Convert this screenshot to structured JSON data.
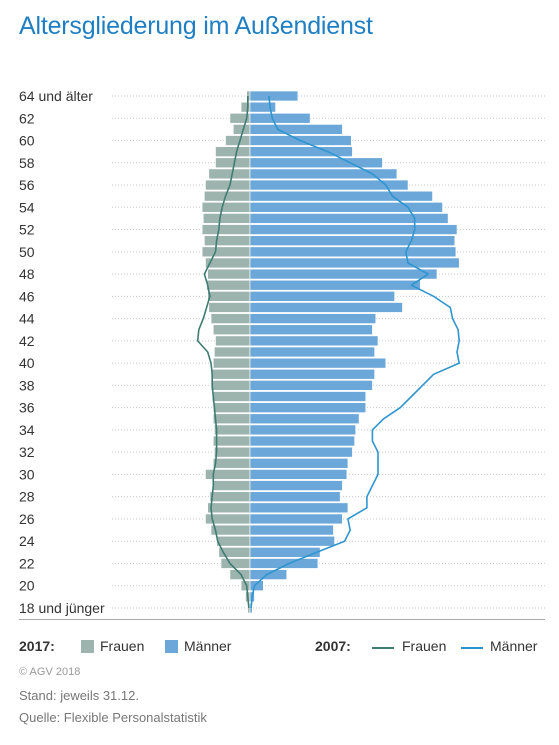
{
  "title": "Altersgliederung im Außendienst",
  "chart_data": {
    "type": "bar",
    "orientation": "horizontal-population-pyramid",
    "ages": [
      18,
      19,
      20,
      21,
      22,
      23,
      24,
      25,
      26,
      27,
      28,
      29,
      30,
      31,
      32,
      33,
      34,
      35,
      36,
      37,
      38,
      39,
      40,
      41,
      42,
      43,
      44,
      45,
      46,
      47,
      48,
      49,
      50,
      51,
      52,
      53,
      54,
      55,
      56,
      57,
      58,
      59,
      60,
      61,
      62,
      63,
      64
    ],
    "age_tick_labels": [
      "18 und jünger",
      "20",
      "22",
      "24",
      "26",
      "28",
      "30",
      "32",
      "34",
      "36",
      "38",
      "40",
      "42",
      "44",
      "46",
      "48",
      "50",
      "52",
      "54",
      "56",
      "58",
      "60",
      "62",
      "64 und älter"
    ],
    "series": [
      {
        "name": "Frauen",
        "year": "2017",
        "style": "bar",
        "side": "left",
        "color": "#9db3ae",
        "values": [
          0.2,
          0.4,
          0.8,
          1.8,
          2.6,
          2.8,
          3.0,
          3.5,
          4.0,
          3.8,
          3.6,
          3.4,
          4.0,
          3.3,
          3.2,
          3.3,
          3.2,
          3.3,
          3.3,
          3.4,
          3.5,
          3.4,
          3.3,
          3.2,
          3.1,
          3.3,
          3.5,
          3.7,
          3.8,
          3.9,
          3.8,
          4.0,
          4.3,
          4.1,
          4.3,
          4.2,
          4.3,
          4.1,
          4.0,
          3.7,
          3.1,
          3.1,
          2.2,
          1.5,
          1.8,
          0.8,
          0.3
        ]
      },
      {
        "name": "Männer",
        "year": "2017",
        "style": "bar",
        "side": "right",
        "color": "#6ba7d9",
        "values": [
          0.2,
          0.4,
          1.2,
          3.3,
          6.1,
          6.3,
          7.6,
          7.5,
          8.3,
          8.8,
          8.1,
          8.3,
          8.7,
          8.8,
          9.2,
          9.4,
          9.5,
          9.8,
          10.4,
          10.4,
          11.0,
          11.2,
          12.2,
          11.2,
          11.5,
          11.0,
          11.3,
          13.7,
          13.0,
          15.3,
          16.8,
          18.8,
          18.5,
          18.4,
          18.6,
          17.8,
          17.3,
          16.4,
          14.2,
          13.2,
          11.9,
          9.2,
          9.1,
          8.3,
          5.4,
          2.3,
          4.3
        ]
      },
      {
        "name": "Frauen",
        "year": "2007",
        "style": "line",
        "side": "left",
        "color": "#3f7d72",
        "values": [
          0.1,
          0.2,
          0.3,
          0.8,
          1.8,
          2.4,
          2.9,
          3.1,
          3.4,
          3.5,
          3.4,
          3.3,
          3.3,
          3.1,
          3.0,
          3.0,
          3.0,
          3.1,
          3.2,
          3.3,
          3.4,
          3.4,
          3.5,
          3.8,
          4.7,
          4.6,
          4.2,
          3.9,
          3.6,
          3.8,
          4.1,
          3.6,
          3.1,
          3.0,
          2.8,
          2.7,
          2.5,
          2.2,
          1.8,
          1.6,
          1.4,
          1.2,
          0.9,
          0.6,
          0.3,
          0.2,
          0.2
        ]
      },
      {
        "name": "Männer",
        "year": "2007",
        "style": "line",
        "side": "right",
        "color": "#2f95cf",
        "values": [
          0.1,
          0.2,
          0.4,
          1.5,
          3.5,
          6.0,
          8.5,
          9.0,
          8.8,
          10.5,
          10.5,
          11.0,
          11.5,
          11.5,
          11.5,
          11.0,
          11.0,
          12.0,
          13.5,
          14.5,
          15.5,
          16.5,
          18.8,
          18.6,
          18.8,
          18.7,
          18.2,
          18.0,
          16.5,
          14.5,
          16.0,
          14.2,
          14.0,
          14.5,
          14.8,
          14.8,
          14.2,
          12.8,
          12.2,
          11.0,
          9.0,
          7.0,
          4.5,
          2.5,
          2.0,
          1.8,
          1.7
        ]
      }
    ],
    "legend": [
      {
        "year": "2017:",
        "items": [
          {
            "label": "Frauen",
            "kind": "bar"
          },
          {
            "label": "Männer",
            "kind": "bar"
          }
        ]
      },
      {
        "year": "2007:",
        "items": [
          {
            "label": "Frauen",
            "kind": "line"
          },
          {
            "label": "Männer",
            "kind": "line"
          }
        ]
      }
    ],
    "xlim": [
      -5,
      20
    ],
    "grid": "horizontal-dotted"
  },
  "legend": {
    "year_2017": "2017:",
    "year_2007": "2007:",
    "frauen": "Frauen",
    "maenner": "Männer",
    "frauen_2007": "Frauen",
    "maenner_2007": "Männer"
  },
  "footer": {
    "copyright": "© AGV 2018",
    "stand": "Stand: jeweils 31.12.",
    "quelle": "Quelle: Flexible Personalstatistik"
  },
  "colors": {
    "title": "#1f7fc2",
    "frauen_bar": "#9db3ae",
    "maenner_bar": "#6ba7d9",
    "frauen_line": "#3f7d72",
    "maenner_line": "#2f95cf"
  }
}
